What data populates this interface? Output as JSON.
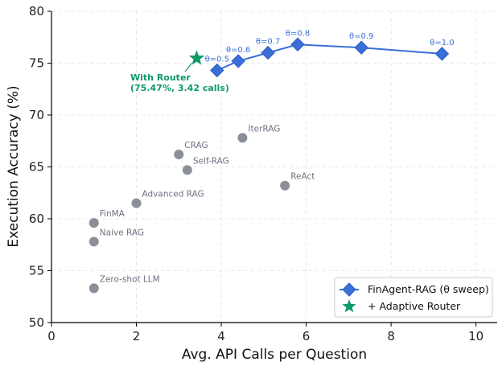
{
  "chart_data": {
    "type": "scatter",
    "title": "",
    "xlabel": "Avg. API Calls per Question",
    "ylabel": "Execution Accuracy (%)",
    "xlim": [
      0,
      10.5
    ],
    "ylim": [
      50,
      80
    ],
    "xticks": [
      0,
      2,
      4,
      6,
      8,
      10
    ],
    "yticks": [
      50,
      55,
      60,
      65,
      70,
      75,
      80
    ],
    "grid": true,
    "legend_position": "lower-right",
    "baselines": [
      {
        "label": "Zero-shot LLM",
        "x": 1.0,
        "y": 53.3
      },
      {
        "label": "Naive RAG",
        "x": 1.0,
        "y": 57.8
      },
      {
        "label": "FinMA",
        "x": 1.0,
        "y": 59.6
      },
      {
        "label": "Advanced RAG",
        "x": 2.0,
        "y": 61.5
      },
      {
        "label": "CRAG",
        "x": 3.0,
        "y": 66.2
      },
      {
        "label": "Self-RAG",
        "x": 3.2,
        "y": 64.7
      },
      {
        "label": "IterRAG",
        "x": 4.5,
        "y": 67.8
      },
      {
        "label": "ReAct",
        "x": 5.5,
        "y": 63.2
      }
    ],
    "series": [
      {
        "name": "FinAgent-RAG (θ sweep)",
        "color": "#3a6fd8",
        "marker": "diamond",
        "points": [
          {
            "label": "θ=0.5",
            "x": 3.9,
            "y": 74.3
          },
          {
            "label": "θ=0.6",
            "x": 4.4,
            "y": 75.2
          },
          {
            "label": "θ=0.7",
            "x": 5.1,
            "y": 76.0
          },
          {
            "label": "θ=0.8",
            "x": 5.8,
            "y": 76.8
          },
          {
            "label": "θ=0.9",
            "x": 7.3,
            "y": 76.5
          },
          {
            "label": "θ=1.0",
            "x": 9.2,
            "y": 75.9
          }
        ]
      },
      {
        "name": "+ Adaptive Router",
        "color": "#0f9a6a",
        "marker": "star",
        "points": [
          {
            "x": 3.42,
            "y": 75.47
          }
        ]
      }
    ],
    "annotation": {
      "line1": "With Router",
      "line2": "(75.47%, 3.42 calls)",
      "color": "#0f9a6a"
    },
    "baseline_color": "#8a8f99"
  }
}
